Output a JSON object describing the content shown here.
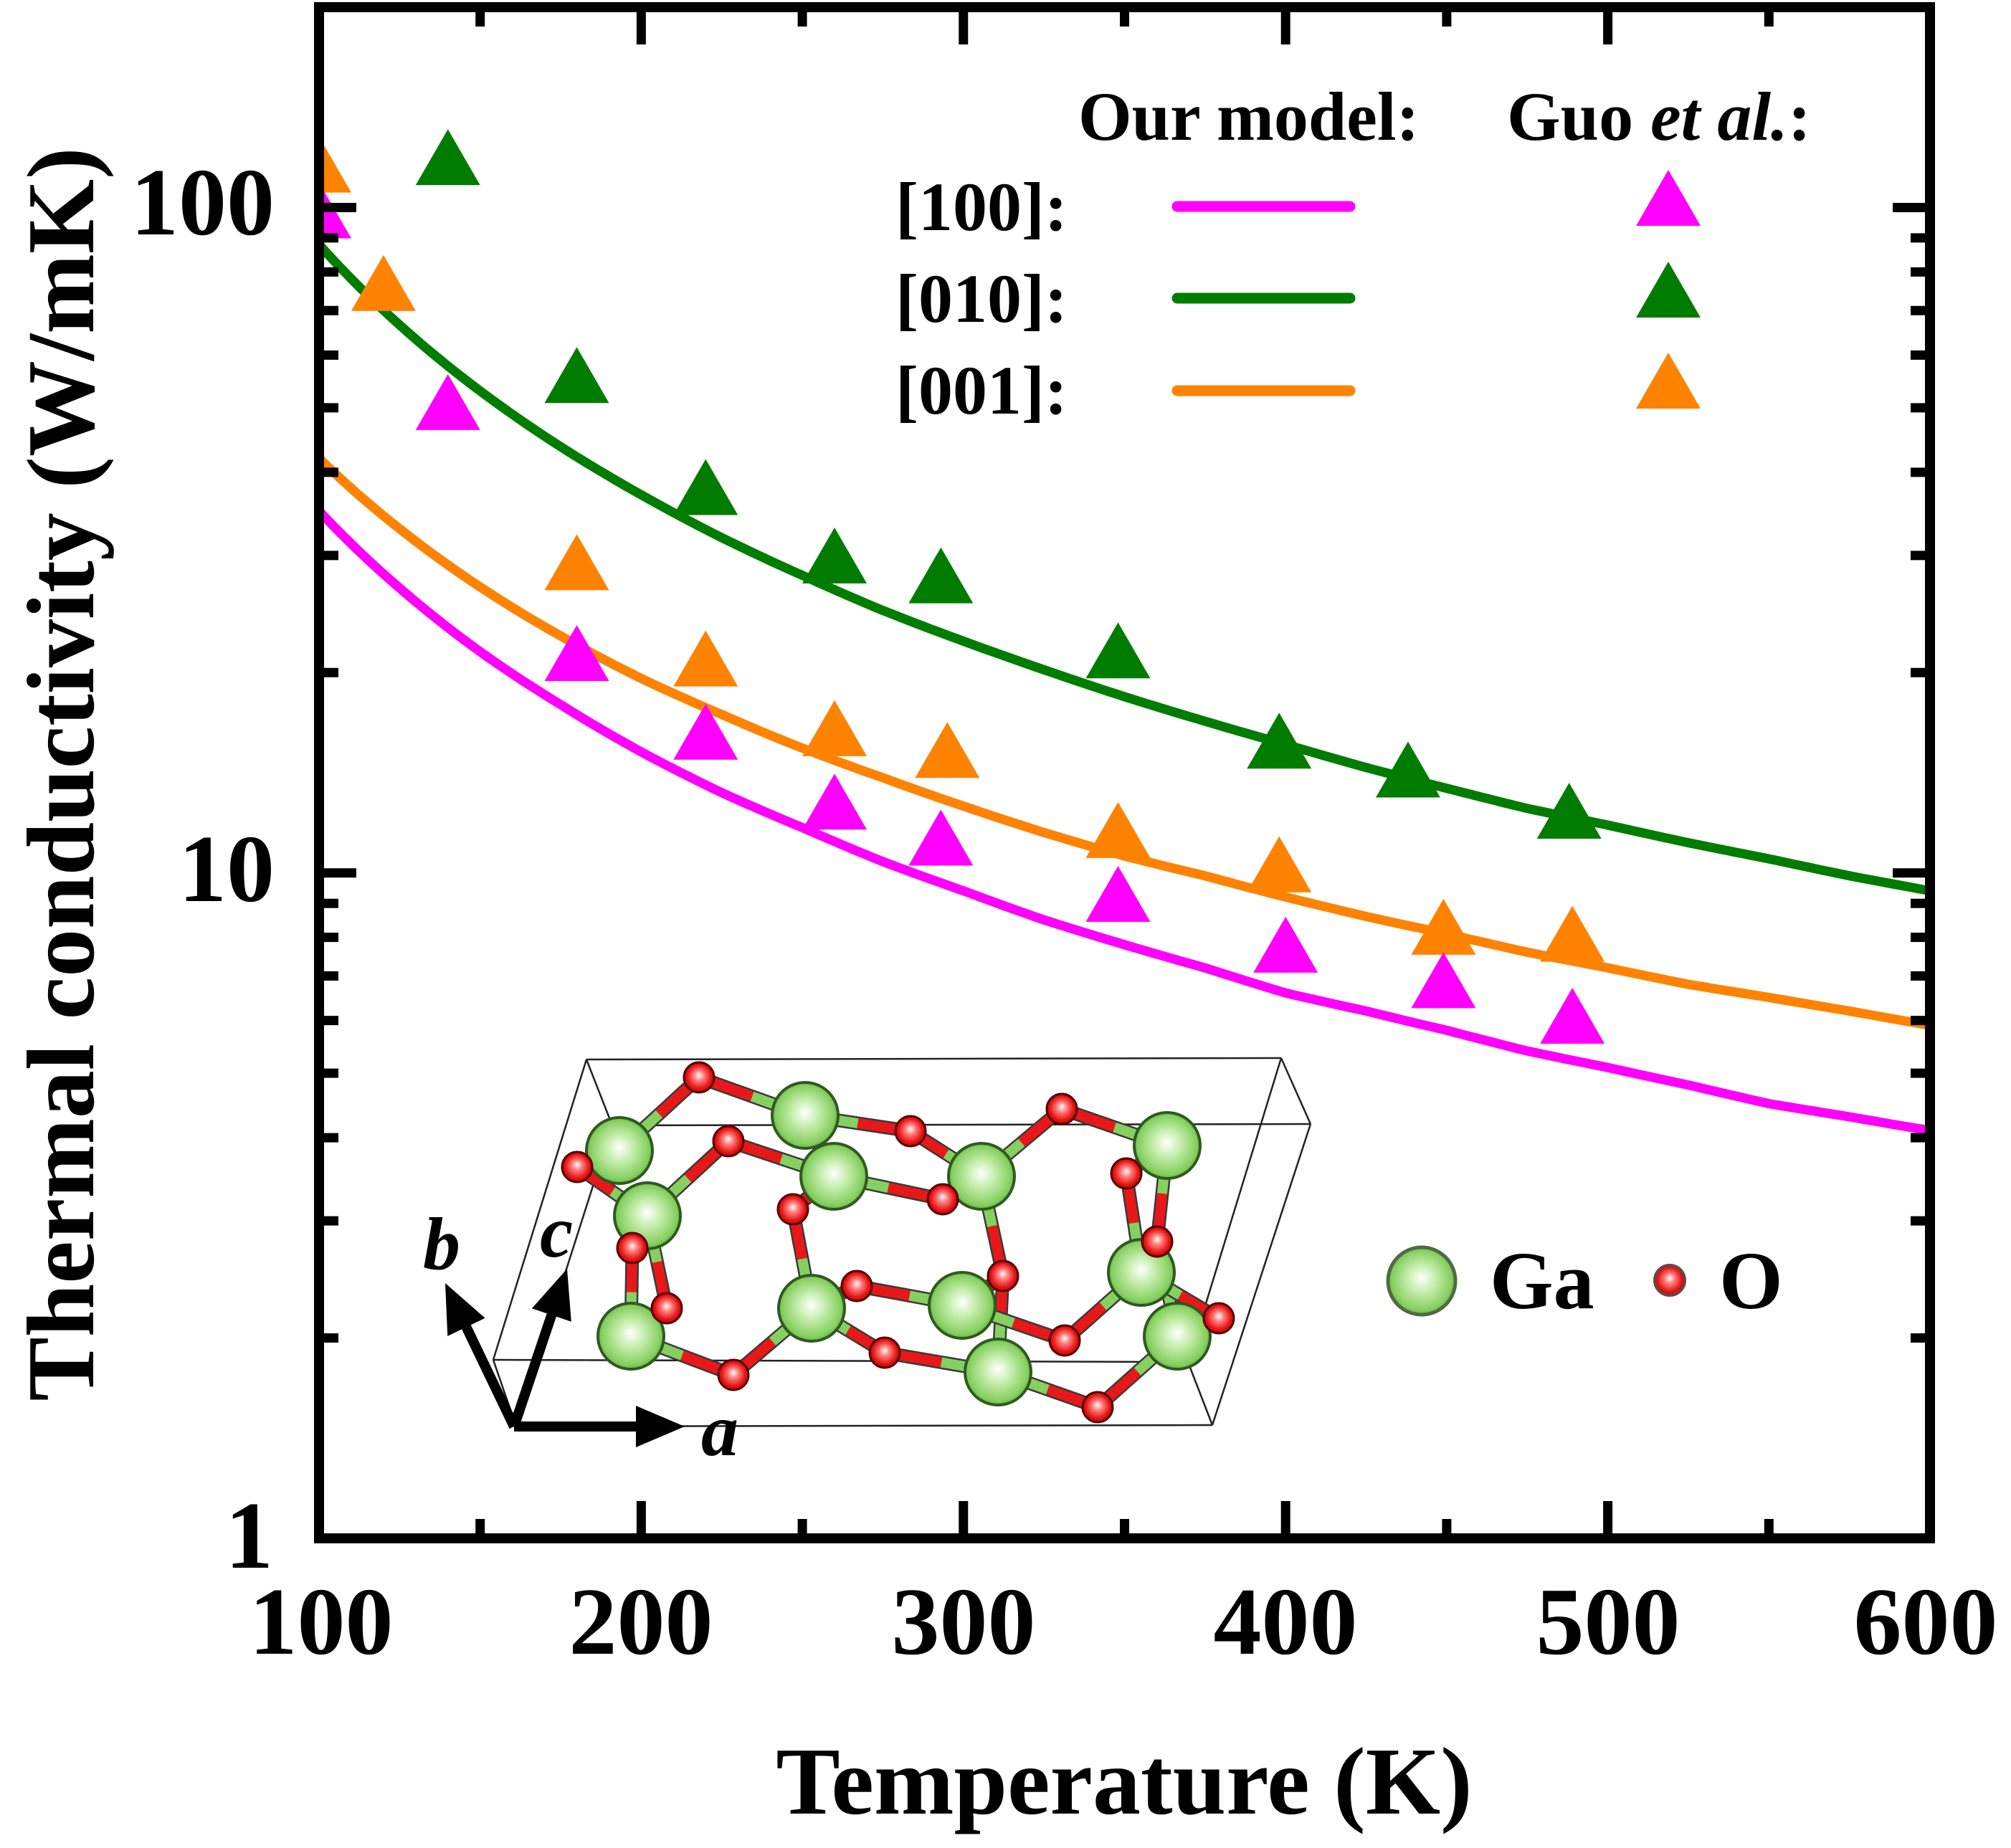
{
  "chart_data": {
    "type": "line",
    "title": "",
    "xlabel": "Temperature (K)",
    "ylabel": "Thermal conductivity (W/mK)",
    "xlim": [
      100,
      600
    ],
    "ylim": [
      1,
      200
    ],
    "xscale": "linear",
    "yscale": "log",
    "grid": false,
    "xticks": [
      "100",
      "200",
      "300",
      "400",
      "500",
      "600"
    ],
    "yticks": [
      "1",
      "10",
      "100"
    ],
    "legend": {
      "placement": "top-right",
      "model_header": "Our model:",
      "exp_header": {
        "prefix": "Guo ",
        "italic": "et al.",
        "suffix": ":"
      }
    },
    "model_T": [
      100,
      125,
      150,
      175,
      200,
      225,
      250,
      275,
      300,
      325,
      350,
      375,
      400,
      425,
      450,
      475,
      500,
      525,
      550,
      575,
      600
    ],
    "series": [
      {
        "name": "[100]",
        "label": "[100]:",
        "color": "#ff00ff",
        "model_kappa": [
          35.0,
          26.8,
          21.5,
          17.9,
          15.2,
          13.2,
          11.7,
          10.4,
          9.4,
          8.5,
          7.8,
          7.2,
          6.6,
          6.2,
          5.8,
          5.4,
          5.1,
          4.8,
          4.5,
          4.3,
          4.1
        ],
        "guo_et_al": {
          "T": [
            100,
            140,
            180,
            220,
            260,
            293,
            348,
            400,
            449,
            489
          ],
          "kappa": [
            99,
            51,
            21.4,
            16.3,
            12.8,
            11.3,
            9.3,
            7.8,
            6.9,
            6.1
          ]
        }
      },
      {
        "name": "[010]",
        "label": "[010]:",
        "color": "#007d00",
        "model_kappa": [
          88.0,
          66.6,
          53.0,
          43.7,
          37.0,
          31.9,
          28.0,
          24.8,
          22.3,
          20.2,
          18.4,
          16.9,
          15.6,
          14.4,
          13.4,
          12.5,
          11.8,
          11.1,
          10.5,
          9.9,
          9.4
        ],
        "guo_et_al": {
          "T": [
            140,
            180,
            220,
            260,
            293,
            348,
            398,
            438,
            488
          ],
          "kappa": [
            119,
            56,
            38,
            30,
            28,
            21.6,
            15.8,
            14.3,
            12.4
          ]
        }
      },
      {
        "name": "[001]",
        "label": "[001]:",
        "color": "#ff8200",
        "model_kappa": [
          42.0,
          32.9,
          26.9,
          22.7,
          19.6,
          17.3,
          15.4,
          13.9,
          12.6,
          11.5,
          10.6,
          9.9,
          9.2,
          8.6,
          8.1,
          7.6,
          7.2,
          6.8,
          6.5,
          6.2,
          5.9
        ],
        "guo_et_al": {
          "T": [
            100,
            120,
            180,
            220,
            260,
            295,
            348,
            398,
            449,
            489
          ],
          "kappa": [
            116,
            77,
            29.3,
            21.0,
            16.5,
            15.3,
            11.6,
            10.3,
            8.3,
            8.1
          ]
        }
      }
    ]
  },
  "inset": {
    "axes": {
      "a": "a",
      "b": "b",
      "c": "c"
    },
    "species": [
      {
        "label": "Ga",
        "color": "#86d060"
      },
      {
        "label": "O",
        "color": "#e81818"
      }
    ]
  }
}
